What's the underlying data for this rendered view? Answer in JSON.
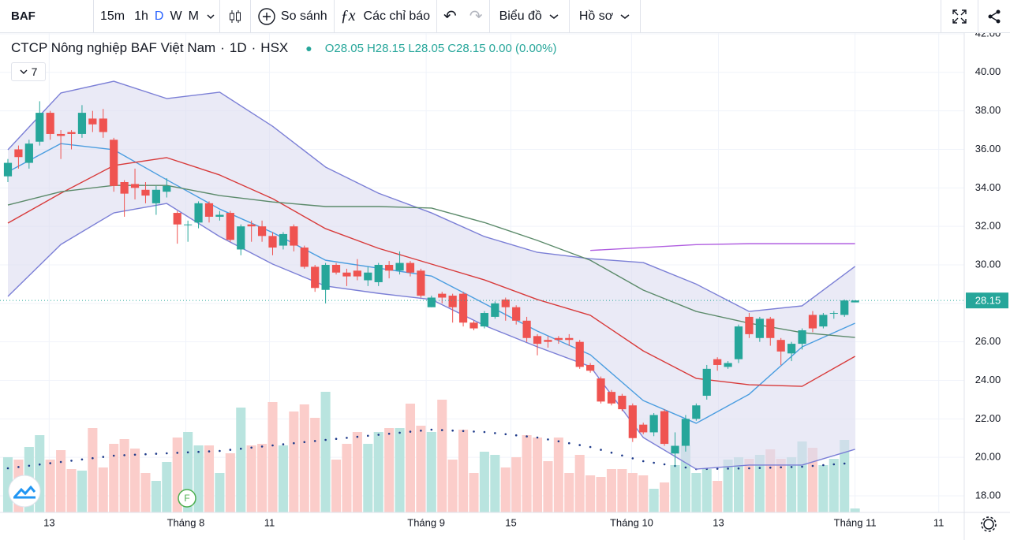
{
  "toolbar": {
    "symbol": "BAF",
    "intervals": [
      "15m",
      "1h",
      "D",
      "W",
      "M"
    ],
    "active_interval": 2,
    "compare": "So sánh",
    "indicators": "Các chỉ báo",
    "chart_menu": "Biểu đồ",
    "profile": "Hồ sơ"
  },
  "legend": {
    "name": "CTCP Nông nghiệp BAF Việt Nam",
    "interval": "1D",
    "exchange": "HSX",
    "open": "O28.05",
    "high": "H28.15",
    "low": "L28.05",
    "close": "C28.15",
    "change": "0.00 (0.00%)",
    "indicator_count": "7"
  },
  "chart_data": {
    "type": "candlestick",
    "up_color": "#26a69a",
    "down_color": "#ef5350",
    "volume_up_color": "#b9e4df",
    "volume_down_color": "#fbcdca",
    "xlim": [
      -0.745,
      90.31
    ],
    "xticks": [
      {
        "value": 3.9,
        "label": "13"
      },
      {
        "value": 16.8,
        "label": "Tháng 8"
      },
      {
        "value": 24.7,
        "label": "11"
      },
      {
        "value": 39.5,
        "label": "Tháng 9"
      },
      {
        "value": 47.5,
        "label": "15"
      },
      {
        "value": 58.9,
        "label": "Tháng 10"
      },
      {
        "value": 67.1,
        "label": "13"
      },
      {
        "value": 80,
        "label": "Tháng 11"
      },
      {
        "value": 87.9,
        "label": "11"
      }
    ],
    "ylim": [
      17.14,
      42.04
    ],
    "yticks": [
      {
        "value": 18,
        "label": "18.00"
      },
      {
        "value": 20,
        "label": "20.00"
      },
      {
        "value": 22,
        "label": "22.00"
      },
      {
        "value": 24,
        "label": "24.00"
      },
      {
        "value": 26,
        "label": "26.00"
      },
      {
        "value": 28,
        "label": "28.00"
      },
      {
        "value": 30,
        "label": "30.00"
      },
      {
        "value": 32,
        "label": "32.00"
      },
      {
        "value": 34,
        "label": "34.00"
      },
      {
        "value": 36,
        "label": "36.00"
      },
      {
        "value": 38,
        "label": "38.00"
      },
      {
        "value": 40,
        "label": "40.00"
      },
      {
        "value": 42,
        "label": "42.00"
      }
    ],
    "last_price": {
      "value": 28.15,
      "label": "28.15"
    },
    "last_price_color": "#26a69a",
    "open": [
      34.6,
      36.0,
      35.3,
      36.4,
      37.9,
      36.8,
      36.9,
      36.8,
      37.6,
      37.6,
      36.5,
      34.3,
      34.2,
      33.9,
      33.2,
      33.8,
      32.7,
      32.1,
      32.2,
      33.2,
      32.5,
      32.7,
      30.8,
      32.1,
      32.0,
      31.5,
      31.0,
      32.0,
      30.9,
      29.9,
      28.7,
      30.0,
      29.6,
      29.7,
      29.2,
      29.1,
      30.0,
      29.7,
      30.1,
      29.7,
      27.8,
      28.5,
      28.4,
      28.5,
      27.0,
      26.8,
      27.3,
      28.2,
      27.8,
      27.1,
      26.3,
      26.1,
      26.2,
      26.2,
      26.0,
      24.8,
      24.1,
      23.4,
      23.2,
      22.7,
      21.7,
      21.3,
      22.4,
      20.2,
      20.6,
      22.0,
      23.2,
      25.1,
      24.7,
      25.1,
      27.3,
      26.2,
      27.2,
      26.1,
      25.4,
      25.9,
      27.4,
      26.8,
      27.5,
      27.4,
      28.05
    ],
    "high": [
      35.5,
      36.2,
      36.5,
      38.5,
      38.0,
      37.0,
      37.0,
      38.3,
      38.0,
      38.1,
      36.6,
      34.4,
      35.0,
      34.3,
      34.1,
      34.5,
      32.8,
      32.3,
      33.3,
      33.3,
      32.8,
      32.8,
      32.1,
      32.3,
      32.3,
      31.7,
      31.7,
      32.1,
      31.0,
      30.0,
      30.1,
      30.1,
      29.8,
      30.3,
      29.9,
      30.1,
      30.2,
      30.7,
      30.2,
      29.8,
      28.4,
      28.6,
      28.5,
      28.6,
      27.1,
      27.6,
      28.1,
      28.3,
      27.9,
      27.3,
      26.4,
      26.3,
      26.3,
      26.4,
      26.1,
      24.9,
      24.2,
      23.5,
      23.3,
      22.8,
      21.8,
      22.3,
      22.5,
      21.3,
      22.2,
      22.8,
      24.8,
      25.2,
      25.0,
      26.9,
      27.5,
      27.3,
      27.3,
      26.2,
      26.0,
      26.7,
      27.6,
      27.5,
      27.6,
      28.2,
      28.15
    ],
    "low": [
      34.3,
      35.0,
      35.0,
      36.2,
      36.5,
      35.5,
      36.0,
      36.6,
      36.9,
      36.6,
      33.8,
      32.5,
      33.4,
      33.2,
      32.6,
      33.5,
      31.1,
      31.2,
      31.9,
      32.2,
      32.3,
      31.2,
      30.5,
      31.2,
      31.2,
      30.5,
      30.8,
      30.7,
      29.8,
      28.6,
      28.0,
      29.5,
      28.9,
      29.2,
      28.9,
      28.9,
      29.3,
      29.5,
      29.4,
      28.3,
      27.8,
      28.0,
      27.0,
      26.8,
      26.6,
      26.7,
      27.2,
      27.1,
      26.9,
      26.0,
      25.3,
      25.7,
      25.9,
      25.8,
      24.6,
      24.4,
      22.8,
      22.7,
      22.4,
      20.8,
      21.2,
      21.1,
      20.6,
      19.5,
      20.3,
      21.9,
      23.0,
      24.5,
      24.6,
      24.9,
      26.2,
      26.0,
      25.8,
      24.8,
      25.0,
      25.6,
      26.5,
      26.7,
      27.2,
      27.3,
      28.05
    ],
    "close": [
      35.3,
      35.6,
      36.3,
      37.9,
      36.8,
      36.7,
      36.8,
      37.9,
      37.3,
      36.9,
      34.1,
      33.7,
      34.0,
      33.6,
      33.9,
      34.1,
      32.1,
      32.1,
      33.2,
      32.5,
      32.6,
      31.3,
      32.0,
      32.0,
      31.5,
      30.9,
      31.6,
      31.0,
      29.9,
      28.8,
      30.0,
      29.6,
      29.4,
      29.4,
      29.6,
      30.0,
      29.7,
      30.1,
      29.6,
      28.4,
      28.3,
      28.3,
      27.8,
      27.0,
      26.7,
      27.5,
      28.0,
      27.8,
      27.1,
      26.2,
      25.9,
      26.0,
      26.1,
      26.1,
      24.7,
      24.5,
      22.9,
      22.8,
      22.5,
      21.0,
      21.3,
      22.2,
      20.7,
      20.6,
      22.0,
      22.7,
      24.6,
      24.8,
      24.9,
      26.8,
      26.4,
      27.2,
      26.2,
      25.5,
      25.9,
      26.6,
      26.7,
      27.4,
      27.5,
      28.15,
      28.15
    ],
    "volume": [
      70,
      67,
      83,
      98,
      67,
      79,
      55,
      53,
      107,
      57,
      87,
      93,
      81,
      50,
      40,
      64,
      95,
      102,
      85,
      85,
      50,
      75,
      133,
      85,
      87,
      140,
      85,
      128,
      137,
      120,
      153,
      67,
      87,
      102,
      87,
      102,
      107,
      107,
      138,
      110,
      102,
      143,
      67,
      105,
      50,
      77,
      73,
      57,
      70,
      98,
      95,
      65,
      95,
      50,
      73,
      47,
      45,
      55,
      55,
      50,
      47,
      30,
      38,
      60,
      85,
      50,
      55,
      40,
      67,
      70,
      68,
      73,
      80,
      68,
      70,
      90,
      82,
      60,
      68,
      92,
      5
    ],
    "band": {
      "fill": "#dcdcf0",
      "upper": {
        "color": "#7b7fd6",
        "x": [
          0,
          5,
          10,
          15,
          20,
          25,
          30,
          35,
          40,
          45,
          50,
          55,
          60,
          65,
          70,
          75,
          80
        ],
        "values": [
          35.98,
          38.93,
          39.54,
          38.64,
          38.97,
          37.2,
          35.08,
          33.72,
          32.7,
          31.47,
          30.65,
          30.32,
          30.12,
          29.0,
          27.58,
          27.87,
          29.92
        ]
      },
      "lower": {
        "color": "#7b7fd6",
        "x": [
          0,
          5,
          10,
          15,
          20,
          25,
          30,
          35,
          40,
          45,
          50,
          55,
          60,
          65,
          70,
          75,
          80
        ],
        "values": [
          28.36,
          31.06,
          32.7,
          33.19,
          31.47,
          30.04,
          28.9,
          28.52,
          28.2,
          26.85,
          25.74,
          24.72,
          21.03,
          19.39,
          19.6,
          19.6,
          20.42
        ]
      }
    },
    "lines": [
      {
        "color": "#4a9de0",
        "x": [
          0,
          5,
          10,
          15,
          20,
          25,
          30,
          35,
          40,
          45,
          50,
          55,
          60,
          65,
          70,
          75,
          80
        ],
        "values": [
          34.83,
          36.3,
          35.98,
          34.42,
          32.9,
          31.68,
          30.24,
          29.83,
          29.42,
          27.99,
          26.56,
          25.33,
          22.95,
          21.77,
          23.28,
          25.74,
          26.97
        ]
      },
      {
        "color": "#d83a3a",
        "x": [
          0,
          5,
          10,
          15,
          20,
          25,
          30,
          35,
          40,
          45,
          50,
          55,
          60,
          65,
          70,
          75,
          80
        ],
        "values": [
          32.17,
          33.72,
          35.16,
          35.57,
          34.67,
          33.44,
          31.88,
          30.86,
          30.04,
          29.22,
          28.2,
          27.38,
          25.53,
          24.1,
          23.77,
          23.69,
          25.25
        ]
      },
      {
        "color": "#5b8a6a",
        "x": [
          0,
          5,
          10,
          15,
          20,
          25,
          30,
          35,
          40,
          45,
          50,
          55,
          60,
          65,
          70,
          75,
          80
        ],
        "values": [
          33.11,
          33.8,
          34.13,
          34.13,
          33.6,
          33.27,
          33.03,
          33.03,
          32.95,
          32.2,
          31.27,
          30.24,
          28.69,
          27.58,
          26.97,
          26.48,
          26.23
        ]
      },
      {
        "color": "#b05ee0",
        "x": [
          55,
          60,
          65,
          70,
          75,
          80
        ],
        "values": [
          30.75,
          30.9,
          31.05,
          31.1,
          31.1,
          31.1
        ]
      }
    ],
    "volume_ma": {
      "color": "#1e3a8a",
      "x": [
        0,
        10,
        20,
        30,
        40,
        45,
        50,
        55,
        60,
        65,
        70,
        75,
        80
      ],
      "values": [
        56,
        72,
        78,
        92,
        105,
        102,
        95,
        83,
        65,
        55,
        56,
        58,
        63
      ]
    }
  }
}
